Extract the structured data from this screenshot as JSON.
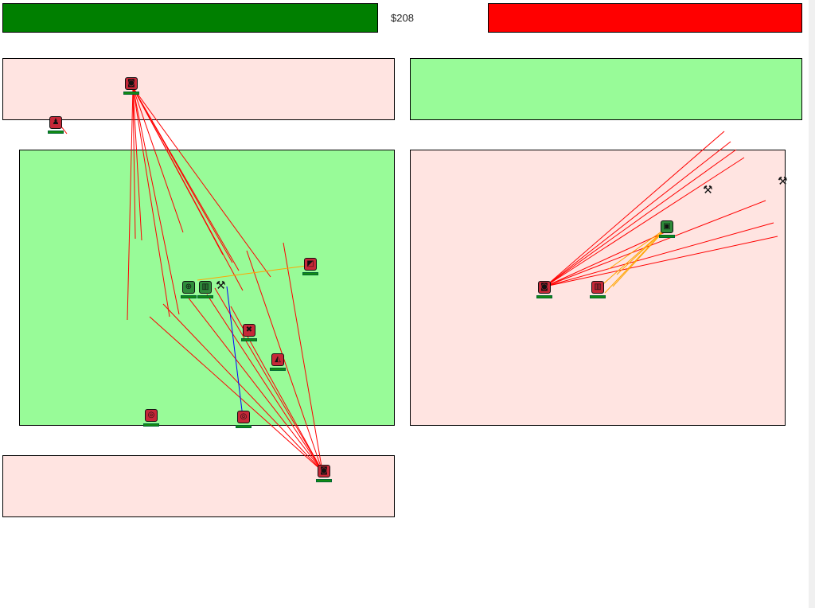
{
  "hud": {
    "money": "$208",
    "player_hp_color": "#007f00",
    "enemy_hp_color": "#ff0000"
  },
  "zones": [
    {
      "id": "top-left",
      "owner": "enemy"
    },
    {
      "id": "top-right",
      "owner": "ally"
    },
    {
      "id": "mid-left",
      "owner": "ally"
    },
    {
      "id": "mid-right",
      "owner": "enemy"
    },
    {
      "id": "bottom-left",
      "owner": "enemy"
    }
  ],
  "units": [
    {
      "id": "u1",
      "team": "enemy",
      "icon": "helmet-icon",
      "glyph": "◙"
    },
    {
      "id": "u2",
      "team": "enemy",
      "icon": "soldier-icon",
      "glyph": "♟"
    },
    {
      "id": "u3",
      "team": "ally",
      "icon": "shield-icon",
      "glyph": "⊕"
    },
    {
      "id": "u4",
      "team": "ally",
      "icon": "barracks-icon",
      "glyph": "▥"
    },
    {
      "id": "u5",
      "team": "enemy",
      "icon": "turret-icon",
      "glyph": "◩"
    },
    {
      "id": "u6",
      "team": "enemy",
      "icon": "cross-icon",
      "glyph": "✖"
    },
    {
      "id": "u7",
      "team": "enemy",
      "icon": "spear-icon",
      "glyph": "◭"
    },
    {
      "id": "u8",
      "team": "enemy",
      "icon": "cannon-icon",
      "glyph": "◎"
    },
    {
      "id": "u9",
      "team": "enemy",
      "icon": "cannon-icon",
      "glyph": "◎"
    },
    {
      "id": "u10",
      "team": "enemy",
      "icon": "helmet-icon",
      "glyph": "◙"
    },
    {
      "id": "u11",
      "team": "enemy",
      "icon": "helmet-icon",
      "glyph": "◙"
    },
    {
      "id": "u12",
      "team": "enemy",
      "icon": "barracks-icon",
      "glyph": "▥"
    },
    {
      "id": "u13",
      "team": "ally",
      "icon": "tower-icon",
      "glyph": "▣"
    }
  ],
  "colors": {
    "enemy_zone": "#ffe4e1",
    "ally_zone": "#98fb98",
    "laser_red": "#ff0000",
    "laser_orange": "#ffa500",
    "laser_blue": "#0000ff"
  }
}
